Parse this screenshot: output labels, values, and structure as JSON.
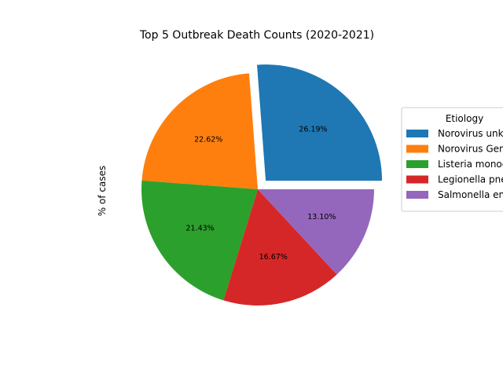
{
  "chart_data": {
    "type": "pie",
    "title": "Top 5 Outbreak Death Counts (2020-2021)",
    "ylabel": "% of cases",
    "legend": {
      "title": "Etiology",
      "placement": "right"
    },
    "categories": [
      "Norovirus unknown",
      "Norovirus Genogroup II",
      "Listeria monocytogenes",
      "Legionella pneumophila",
      "Salmonella enterica"
    ],
    "values": [
      26.19,
      22.62,
      21.43,
      16.67,
      13.1
    ],
    "labels": [
      "26.19%",
      "22.62%",
      "21.43%",
      "16.67%",
      "13.10%"
    ],
    "colors": [
      "#1f77b4",
      "#ff7f0e",
      "#2ca02c",
      "#d62728",
      "#9467bd"
    ],
    "explode": [
      0.1,
      0,
      0,
      0,
      0
    ],
    "start_angle_deg": 0,
    "direction": "counterclockwise"
  }
}
